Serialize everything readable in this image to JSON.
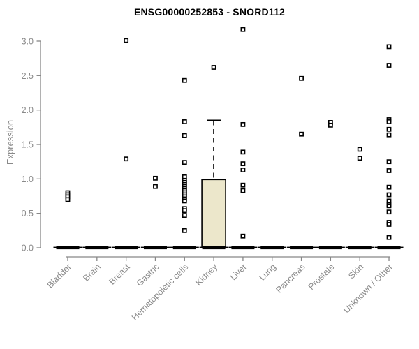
{
  "chart_data": {
    "type": "boxplot",
    "title": "ENSG00000252853 - SNORD112",
    "ylabel": "Expression",
    "xlabel": "",
    "ylim": [
      0,
      3.2
    ],
    "yticks": [
      "0.0",
      "0.5",
      "1.0",
      "1.5",
      "2.0",
      "2.5",
      "3.0"
    ],
    "ytick_values": [
      0,
      0.5,
      1.0,
      1.5,
      2.0,
      2.5,
      3.0
    ],
    "grid": false,
    "legend": "none",
    "colors": {
      "box_fill": "#ece7cb",
      "box_border": "#000000",
      "median_bar": "#000000",
      "point_stroke": "#000000",
      "point_fill": "#ffffff",
      "axis": "#878787",
      "tick_label": "#8a8a8a",
      "title": "#000000"
    },
    "categories": [
      "Bladder",
      "Brain",
      "Breast",
      "Gastric",
      "Hematopoietic cells",
      "Kidney",
      "Liver",
      "Lung",
      "Pancreas",
      "Prostate",
      "Skin",
      "Unknown / Other"
    ],
    "series": [
      {
        "name": "Bladder",
        "box": {
          "low": 0,
          "q1": 0,
          "median": 0,
          "q3": 0,
          "high": 0
        },
        "outliers": [
          0.8,
          0.77,
          0.74,
          0.7
        ]
      },
      {
        "name": "Brain",
        "box": {
          "low": 0,
          "q1": 0,
          "median": 0,
          "q3": 0,
          "high": 0
        },
        "outliers": []
      },
      {
        "name": "Breast",
        "box": {
          "low": 0,
          "q1": 0,
          "median": 0,
          "q3": 0,
          "high": 0
        },
        "outliers": [
          3.01,
          1.29
        ]
      },
      {
        "name": "Gastric",
        "box": {
          "low": 0,
          "q1": 0,
          "median": 0,
          "q3": 0,
          "high": 0
        },
        "outliers": [
          1.01,
          0.89
        ]
      },
      {
        "name": "Hematopoietic cells",
        "box": {
          "low": 0,
          "q1": 0,
          "median": 0,
          "q3": 0,
          "high": 0
        },
        "outliers": [
          2.43,
          1.83,
          1.63,
          1.24,
          1.03,
          0.98,
          0.95,
          0.92,
          0.89,
          0.86,
          0.83,
          0.8,
          0.77,
          0.74,
          0.71,
          0.68,
          0.57,
          0.54,
          0.47,
          0.25
        ]
      },
      {
        "name": "Kidney",
        "box": {
          "low": 0,
          "q1": 0,
          "median": 0,
          "q3": 0.99,
          "high": 1.85
        },
        "outliers": [
          2.62
        ]
      },
      {
        "name": "Liver",
        "box": {
          "low": 0,
          "q1": 0,
          "median": 0,
          "q3": 0,
          "high": 0
        },
        "outliers": [
          3.17,
          1.79,
          1.39,
          1.22,
          1.13,
          0.91,
          0.83,
          0.17
        ]
      },
      {
        "name": "Lung",
        "box": {
          "low": 0,
          "q1": 0,
          "median": 0,
          "q3": 0,
          "high": 0
        },
        "outliers": []
      },
      {
        "name": "Pancreas",
        "box": {
          "low": 0,
          "q1": 0,
          "median": 0,
          "q3": 0,
          "high": 0
        },
        "outliers": [
          2.46,
          1.65
        ]
      },
      {
        "name": "Prostate",
        "box": {
          "low": 0,
          "q1": 0,
          "median": 0,
          "q3": 0,
          "high": 0
        },
        "outliers": [
          1.82,
          1.78
        ]
      },
      {
        "name": "Skin",
        "box": {
          "low": 0,
          "q1": 0,
          "median": 0,
          "q3": 0,
          "high": 0
        },
        "outliers": [
          1.43,
          1.3
        ]
      },
      {
        "name": "Unknown / Other",
        "box": {
          "low": 0,
          "q1": 0,
          "median": 0,
          "q3": 0,
          "high": 0
        },
        "outliers": [
          2.92,
          2.65,
          1.86,
          1.83,
          1.72,
          1.64,
          1.25,
          1.12,
          0.88,
          0.77,
          0.68,
          0.63,
          0.61,
          0.52,
          0.37,
          0.34,
          0.15
        ]
      }
    ]
  }
}
